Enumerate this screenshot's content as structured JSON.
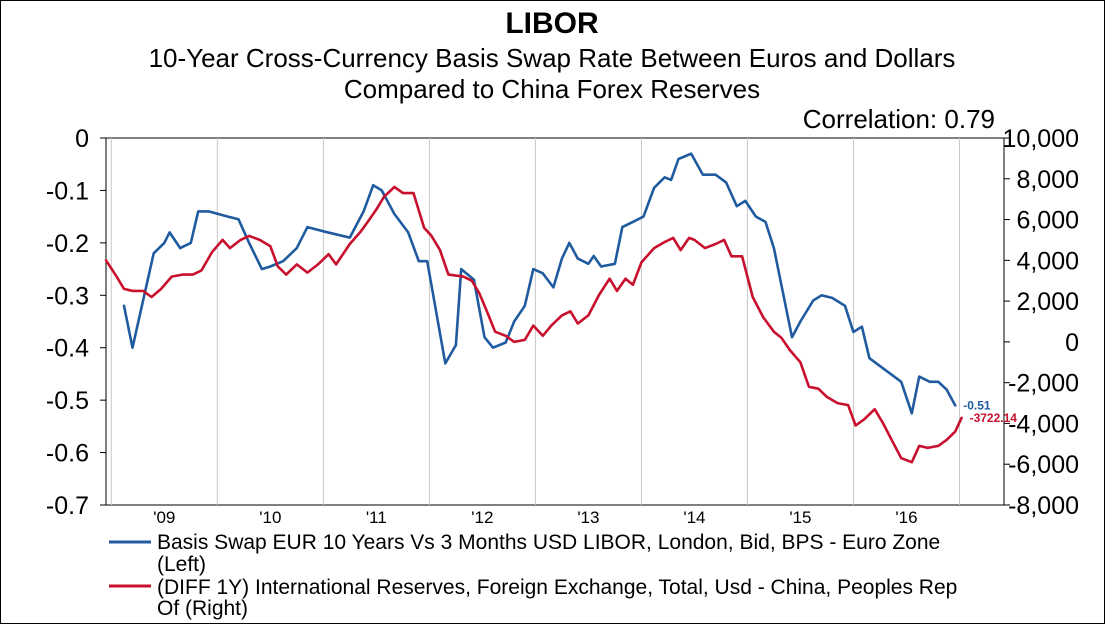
{
  "chart_data": {
    "type": "line",
    "title": "LIBOR",
    "subtitle_lines": [
      "10-Year Cross-Currency Basis Swap Rate Between Euros and Dollars",
      "Compared to China Forex Reserves"
    ],
    "annotation": "Correlation: 0.79",
    "x_range": [
      2008.45,
      2016.92
    ],
    "x_ticks": [
      {
        "label": "'09",
        "x": 2009.0
      },
      {
        "label": "'10",
        "x": 2010.0
      },
      {
        "label": "'11",
        "x": 2011.0
      },
      {
        "label": "'12",
        "x": 2012.0
      },
      {
        "label": "'13",
        "x": 2013.0
      },
      {
        "label": "'14",
        "x": 2014.0
      },
      {
        "label": "'15",
        "x": 2015.0
      },
      {
        "label": "'16",
        "x": 2016.0
      }
    ],
    "x_gridlines": [
      2008.5,
      2009.5,
      2010.5,
      2011.5,
      2012.5,
      2013.5,
      2014.5,
      2015.5,
      2016.5
    ],
    "y_left": {
      "min": -0.7,
      "max": 0,
      "ticks": [
        0,
        -0.1,
        -0.2,
        -0.3,
        -0.4,
        -0.5,
        -0.6,
        -0.7
      ],
      "tick_labels": [
        "0",
        "-0.1",
        "-0.2",
        "-0.3",
        "-0.4",
        "-0.5",
        "-0.6",
        "-0.7"
      ]
    },
    "y_right": {
      "min": -8000,
      "max": 10000,
      "ticks": [
        10000,
        8000,
        6000,
        4000,
        2000,
        0,
        -2000,
        -4000,
        -6000,
        -8000
      ],
      "tick_labels": [
        "10,000",
        "8,000",
        "6,000",
        "4,000",
        "2,000",
        "0",
        "-2,000",
        "-4,000",
        "-6,000",
        "-8,000"
      ]
    },
    "grid": false,
    "legend_position": "bottom",
    "series": [
      {
        "name": "Basis Swap EUR 10 Years Vs 3 Months USD LIBOR, London, Bid, BPS - Euro Zone (Left)",
        "axis": "left",
        "color": "#1f5b9e",
        "end_label": "-0.51",
        "points": [
          [
            2008.62,
            -0.32
          ],
          [
            2008.7,
            -0.4
          ],
          [
            2008.9,
            -0.22
          ],
          [
            2009.0,
            -0.2
          ],
          [
            2009.05,
            -0.18
          ],
          [
            2009.15,
            -0.21
          ],
          [
            2009.25,
            -0.2
          ],
          [
            2009.32,
            -0.14
          ],
          [
            2009.42,
            -0.14
          ],
          [
            2009.6,
            -0.15
          ],
          [
            2009.7,
            -0.155
          ],
          [
            2009.8,
            -0.2
          ],
          [
            2009.92,
            -0.25
          ],
          [
            2010.0,
            -0.245
          ],
          [
            2010.12,
            -0.235
          ],
          [
            2010.25,
            -0.21
          ],
          [
            2010.35,
            -0.17
          ],
          [
            2010.5,
            -0.178
          ],
          [
            2010.75,
            -0.19
          ],
          [
            2010.88,
            -0.14
          ],
          [
            2010.97,
            -0.09
          ],
          [
            2011.05,
            -0.1
          ],
          [
            2011.17,
            -0.145
          ],
          [
            2011.3,
            -0.18
          ],
          [
            2011.4,
            -0.235
          ],
          [
            2011.48,
            -0.235
          ],
          [
            2011.65,
            -0.43
          ],
          [
            2011.75,
            -0.395
          ],
          [
            2011.8,
            -0.25
          ],
          [
            2011.92,
            -0.27
          ],
          [
            2012.02,
            -0.38
          ],
          [
            2012.1,
            -0.4
          ],
          [
            2012.22,
            -0.39
          ],
          [
            2012.3,
            -0.35
          ],
          [
            2012.4,
            -0.32
          ],
          [
            2012.48,
            -0.25
          ],
          [
            2012.57,
            -0.258
          ],
          [
            2012.67,
            -0.285
          ],
          [
            2012.75,
            -0.23
          ],
          [
            2012.82,
            -0.2
          ],
          [
            2012.9,
            -0.23
          ],
          [
            2013.0,
            -0.24
          ],
          [
            2013.05,
            -0.225
          ],
          [
            2013.12,
            -0.245
          ],
          [
            2013.25,
            -0.24
          ],
          [
            2013.32,
            -0.17
          ],
          [
            2013.42,
            -0.16
          ],
          [
            2013.52,
            -0.15
          ],
          [
            2013.62,
            -0.095
          ],
          [
            2013.72,
            -0.075
          ],
          [
            2013.78,
            -0.08
          ],
          [
            2013.85,
            -0.04
          ],
          [
            2013.97,
            -0.03
          ],
          [
            2014.08,
            -0.07
          ],
          [
            2014.2,
            -0.07
          ],
          [
            2014.3,
            -0.085
          ],
          [
            2014.4,
            -0.13
          ],
          [
            2014.48,
            -0.12
          ],
          [
            2014.58,
            -0.15
          ],
          [
            2014.67,
            -0.16
          ],
          [
            2014.75,
            -0.21
          ],
          [
            2014.92,
            -0.38
          ],
          [
            2015.0,
            -0.35
          ],
          [
            2015.12,
            -0.31
          ],
          [
            2015.2,
            -0.3
          ],
          [
            2015.3,
            -0.305
          ],
          [
            2015.42,
            -0.32
          ],
          [
            2015.5,
            -0.37
          ],
          [
            2015.58,
            -0.36
          ],
          [
            2015.65,
            -0.42
          ],
          [
            2015.75,
            -0.435
          ],
          [
            2015.95,
            -0.465
          ],
          [
            2016.05,
            -0.525
          ],
          [
            2016.12,
            -0.455
          ],
          [
            2016.22,
            -0.465
          ],
          [
            2016.3,
            -0.465
          ],
          [
            2016.38,
            -0.48
          ],
          [
            2016.46,
            -0.51
          ]
        ]
      },
      {
        "name": "(DIFF 1Y) International Reserves, Foreign Exchange, Total, Usd - China, Peoples Rep Of (Right)",
        "axis": "right",
        "color": "#c8102e",
        "end_label": "-3722.14",
        "points": [
          [
            2008.45,
            4000
          ],
          [
            2008.55,
            3200
          ],
          [
            2008.62,
            2600
          ],
          [
            2008.7,
            2500
          ],
          [
            2008.8,
            2500
          ],
          [
            2008.88,
            2200
          ],
          [
            2008.97,
            2600
          ],
          [
            2009.07,
            3200
          ],
          [
            2009.17,
            3300
          ],
          [
            2009.27,
            3300
          ],
          [
            2009.35,
            3500
          ],
          [
            2009.45,
            4400
          ],
          [
            2009.55,
            5000
          ],
          [
            2009.62,
            4600
          ],
          [
            2009.72,
            5000
          ],
          [
            2009.8,
            5200
          ],
          [
            2009.9,
            5000
          ],
          [
            2010.0,
            4700
          ],
          [
            2010.07,
            3700
          ],
          [
            2010.15,
            3300
          ],
          [
            2010.25,
            3800
          ],
          [
            2010.35,
            3400
          ],
          [
            2010.45,
            3800
          ],
          [
            2010.55,
            4300
          ],
          [
            2010.62,
            3800
          ],
          [
            2010.75,
            4800
          ],
          [
            2010.85,
            5400
          ],
          [
            2010.92,
            5900
          ],
          [
            2011.0,
            6500
          ],
          [
            2011.07,
            7100
          ],
          [
            2011.17,
            7600
          ],
          [
            2011.25,
            7300
          ],
          [
            2011.35,
            7300
          ],
          [
            2011.45,
            5600
          ],
          [
            2011.52,
            5200
          ],
          [
            2011.6,
            4500
          ],
          [
            2011.68,
            3300
          ],
          [
            2011.82,
            3200
          ],
          [
            2011.9,
            3000
          ],
          [
            2011.97,
            2400
          ],
          [
            2012.05,
            1400
          ],
          [
            2012.12,
            500
          ],
          [
            2012.22,
            300
          ],
          [
            2012.3,
            0
          ],
          [
            2012.4,
            100
          ],
          [
            2012.48,
            800
          ],
          [
            2012.57,
            300
          ],
          [
            2012.65,
            800
          ],
          [
            2012.75,
            1300
          ],
          [
            2012.83,
            1500
          ],
          [
            2012.9,
            900
          ],
          [
            2013.0,
            1300
          ],
          [
            2013.1,
            2300
          ],
          [
            2013.2,
            3100
          ],
          [
            2013.27,
            2500
          ],
          [
            2013.35,
            3100
          ],
          [
            2013.42,
            2800
          ],
          [
            2013.5,
            3900
          ],
          [
            2013.62,
            4600
          ],
          [
            2013.72,
            4900
          ],
          [
            2013.8,
            5100
          ],
          [
            2013.87,
            4500
          ],
          [
            2013.95,
            5100
          ],
          [
            2014.0,
            5000
          ],
          [
            2014.1,
            4600
          ],
          [
            2014.2,
            4800
          ],
          [
            2014.28,
            5000
          ],
          [
            2014.35,
            4200
          ],
          [
            2014.45,
            4200
          ],
          [
            2014.55,
            2200
          ],
          [
            2014.65,
            1200
          ],
          [
            2014.75,
            500
          ],
          [
            2014.82,
            200
          ],
          [
            2014.9,
            -400
          ],
          [
            2015.0,
            -1000
          ],
          [
            2015.08,
            -2200
          ],
          [
            2015.17,
            -2300
          ],
          [
            2015.25,
            -2700
          ],
          [
            2015.35,
            -3000
          ],
          [
            2015.45,
            -3100
          ],
          [
            2015.52,
            -4100
          ],
          [
            2015.6,
            -3800
          ],
          [
            2015.7,
            -3300
          ],
          [
            2015.78,
            -4000
          ],
          [
            2015.88,
            -5000
          ],
          [
            2015.95,
            -5700
          ],
          [
            2016.05,
            -5900
          ],
          [
            2016.12,
            -5100
          ],
          [
            2016.2,
            -5200
          ],
          [
            2016.3,
            -5100
          ],
          [
            2016.38,
            -4800
          ],
          [
            2016.46,
            -4400
          ],
          [
            2016.52,
            -3722.14
          ]
        ]
      }
    ]
  }
}
